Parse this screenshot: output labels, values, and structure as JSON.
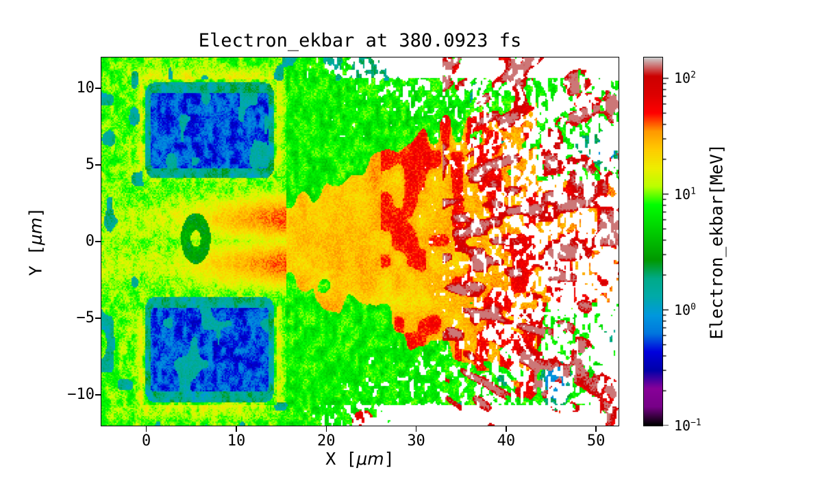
{
  "figure": {
    "background": "#ffffff"
  },
  "chart_data": {
    "type": "heatmap",
    "title": "Electron_ekbar at 380.0923 fs",
    "xlabel": {
      "prefix": "X [",
      "unit": "μm",
      "suffix": "]"
    },
    "ylabel": {
      "prefix": "Y [",
      "unit": "μm",
      "suffix": "]"
    },
    "x_range": [
      -5,
      52.5
    ],
    "y_range": [
      -12,
      12
    ],
    "x_ticks": [
      0,
      10,
      20,
      30,
      40,
      50
    ],
    "y_ticks": [
      -10,
      -5,
      0,
      5,
      10
    ],
    "grid": false,
    "legend": "none",
    "colormap": {
      "name": "nipy_spectral",
      "stops": [
        [
          0.0,
          0,
          0,
          0
        ],
        [
          0.05,
          0.4667,
          0,
          0.5333
        ],
        [
          0.1,
          0.5333,
          0,
          0.6
        ],
        [
          0.15,
          0,
          0,
          0.6667
        ],
        [
          0.2,
          0,
          0,
          0.8667
        ],
        [
          0.25,
          0,
          0.4667,
          0.8667
        ],
        [
          0.3,
          0,
          0.6,
          0.8667
        ],
        [
          0.35,
          0,
          0.6667,
          0.6667
        ],
        [
          0.4,
          0,
          0.6667,
          0.5333
        ],
        [
          0.45,
          0,
          0.6,
          0
        ],
        [
          0.5,
          0,
          0.7333,
          0
        ],
        [
          0.55,
          0,
          0.8667,
          0
        ],
        [
          0.6,
          0,
          1,
          0
        ],
        [
          0.65,
          0.7333,
          1,
          0
        ],
        [
          0.7,
          0.9333,
          0.9333,
          0
        ],
        [
          0.75,
          1,
          0.8,
          0
        ],
        [
          0.8,
          1,
          0.6,
          0
        ],
        [
          0.85,
          1,
          0,
          0
        ],
        [
          0.9,
          0.8667,
          0,
          0
        ],
        [
          0.95,
          0.8,
          0,
          0
        ],
        [
          1.0,
          0.8,
          0.8,
          0.8
        ]
      ]
    },
    "colorbar": {
      "label": "Electron_ekbar[MeV]",
      "scale": "log",
      "vmin": 0.1,
      "vmax": 150,
      "log_min": -1.0,
      "log_max": 2.18,
      "tick_exponents": [
        2,
        1,
        0,
        -1
      ]
    },
    "features": {
      "target_blocks": [
        {
          "x": [
            -0.4,
            14.5
          ],
          "y": [
            3.9,
            10.6
          ],
          "value_mev": 0.5
        },
        {
          "x": [
            -0.4,
            14.5
          ],
          "y": [
            -10.7,
            -3.4
          ],
          "value_mev": 0.5
        }
      ],
      "channel": {
        "y_center": 0,
        "half_width": 4.2,
        "jet_y": [
          -1.5,
          1.5
        ],
        "jet_value_mev": 35
      },
      "plume": {
        "x_start": 14.5,
        "spread_slope": 0.27,
        "value_mev": 20
      },
      "fast_streaks": {
        "x_start": 33,
        "value_mev": 90,
        "origin_x": 9
      },
      "vortex": {
        "x": 5.5,
        "y": 0.2,
        "radius": 1.7,
        "value_mev": 2.4
      },
      "background_value_mev": 7
    },
    "noise_seed": 7
  }
}
